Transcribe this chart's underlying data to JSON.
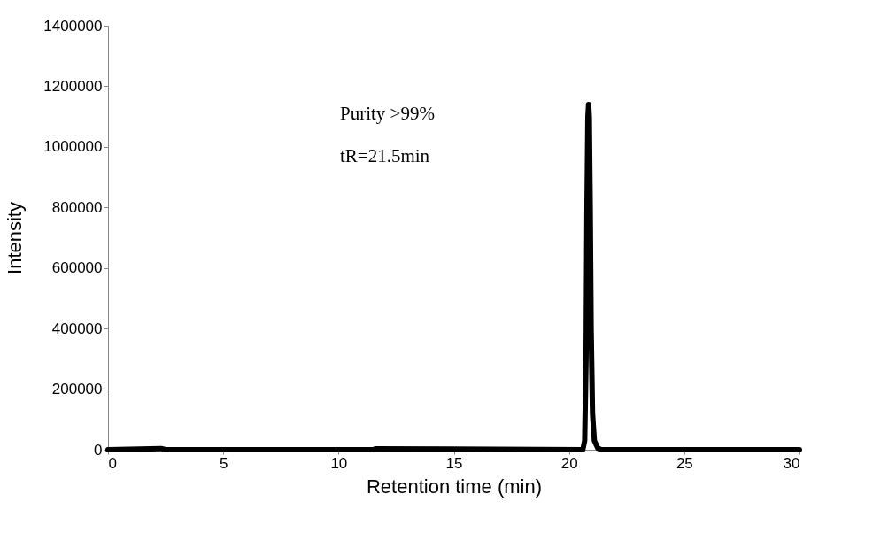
{
  "chart_data": {
    "type": "line",
    "xlabel": "Retention time (min)",
    "ylabel": "Intensity",
    "annotations": [
      "Purity >99%",
      "tR=21.5min"
    ],
    "x": [
      0,
      2.3,
      2.5,
      11.5,
      11.6,
      20.6,
      20.68,
      20.74,
      20.78,
      20.82,
      20.85,
      20.88,
      20.92,
      20.96,
      21.02,
      21.1,
      21.25,
      21.4,
      30
    ],
    "series": [
      {
        "color": "#000000",
        "values": [
          0,
          4000,
          0,
          0,
          3000,
          0,
          30000,
          300000,
          800000,
          1100000,
          1140000,
          1100000,
          800000,
          400000,
          120000,
          30000,
          5000,
          0,
          0
        ]
      }
    ],
    "xlim": [
      0,
      30
    ],
    "xticks": [
      0,
      5,
      10,
      15,
      20,
      25,
      30
    ],
    "ylim": [
      0,
      1400000
    ],
    "yticks": [
      0,
      200000,
      400000,
      600000,
      800000,
      1000000,
      1200000,
      1400000
    ],
    "grid": false,
    "marker": "none",
    "line_style": "solid"
  }
}
